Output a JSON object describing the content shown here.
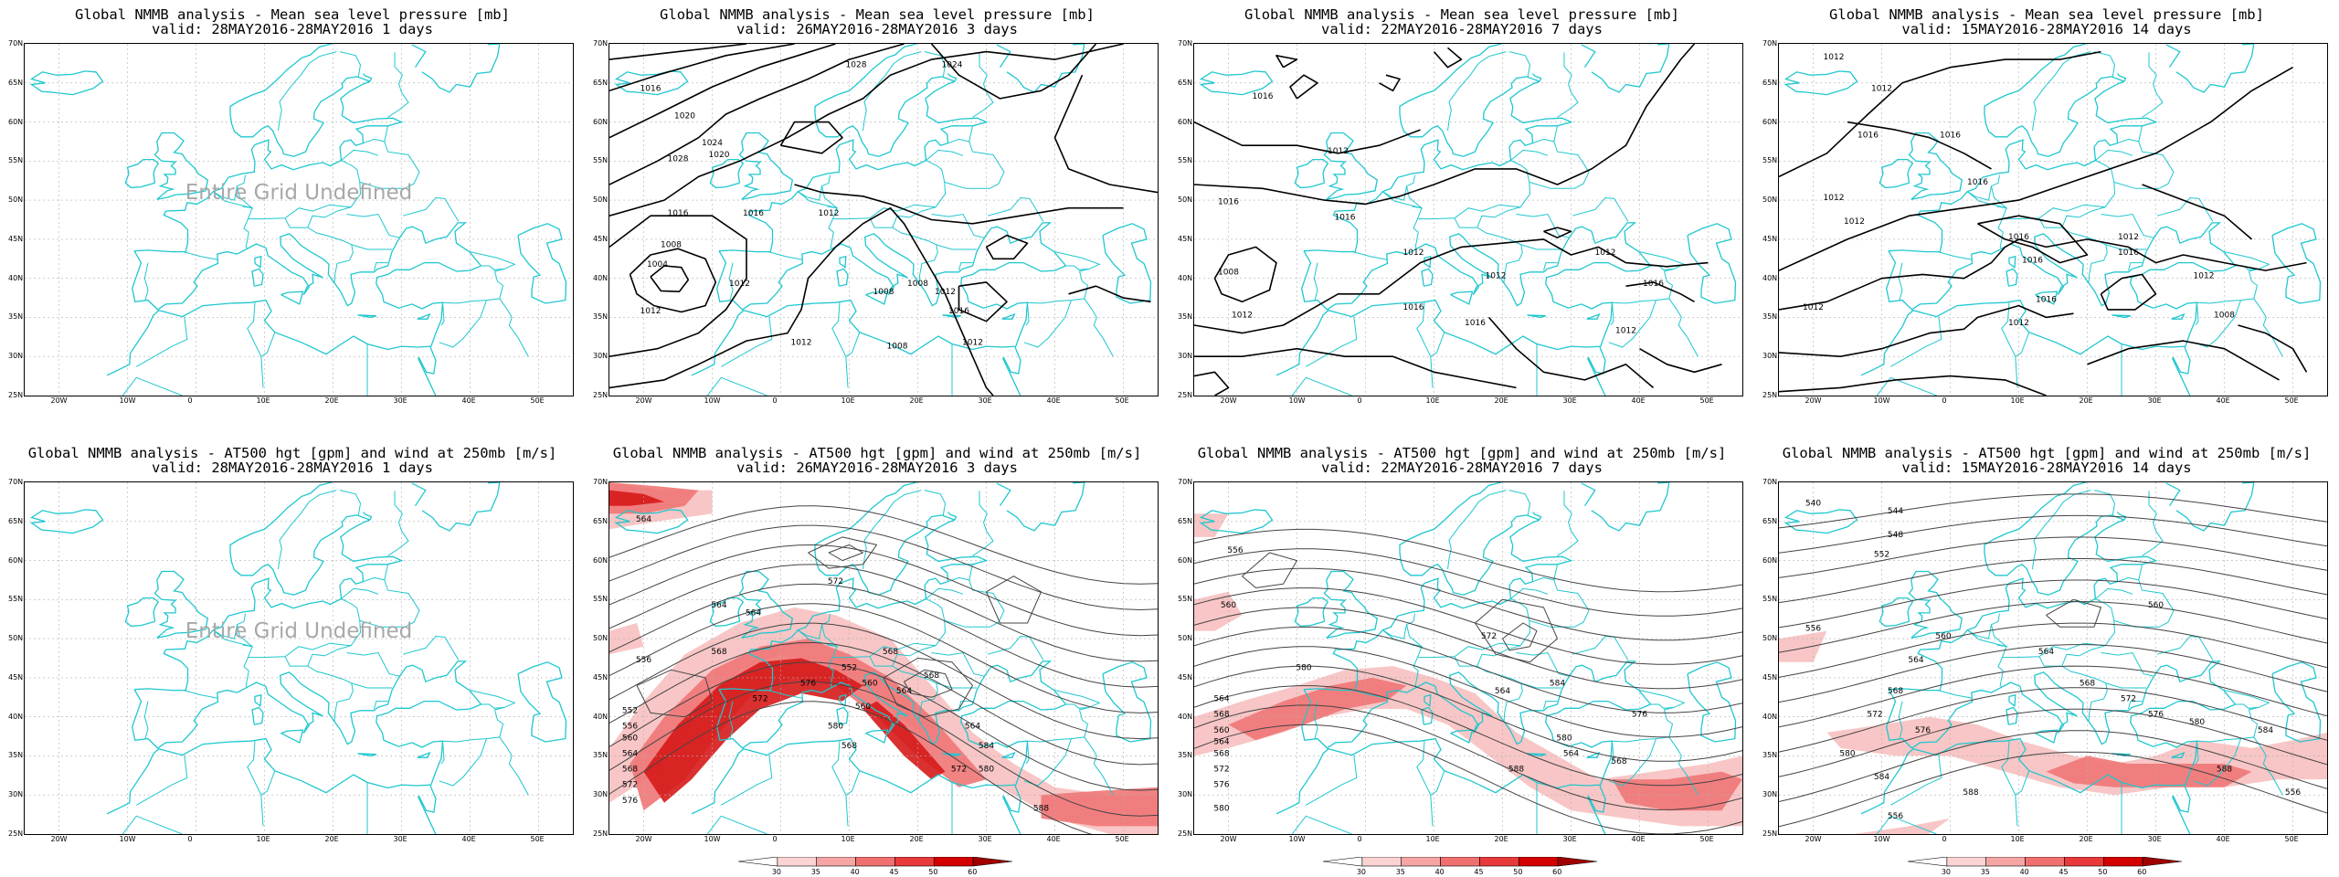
{
  "panels": [
    {
      "title": "Global NMMB analysis - Mean sea level pressure [mb]",
      "valid": "valid: 28MAY2016-28MAY2016  1 days",
      "kind": "mslp",
      "undefined": true,
      "message": "Entire Grid Undefined",
      "contour_labels": []
    },
    {
      "title": "Global NMMB analysis - Mean sea level pressure [mb]",
      "valid": "valid: 26MAY2016-28MAY2016  3 days",
      "kind": "mslp",
      "undefined": false,
      "contour_labels": [
        "1016",
        "1020",
        "1024",
        "1028",
        "1020",
        "1016",
        "1004",
        "1008",
        "1012",
        "1016",
        "1012",
        "1012",
        "1012",
        "1008",
        "1008",
        "1008",
        "1012",
        "1016",
        "1012",
        "1028",
        "1024"
      ]
    },
    {
      "title": "Global NMMB analysis - Mean sea level pressure [mb]",
      "valid": "valid: 22MAY2016-28MAY2016  7 days",
      "kind": "mslp",
      "undefined": false,
      "contour_labels": [
        "1016",
        "1016",
        "1012",
        "1008",
        "1012",
        "1016",
        "1012",
        "1016",
        "1012",
        "1012",
        "1016",
        "1016",
        "1012"
      ]
    },
    {
      "title": "Global NMMB analysis - Mean sea level pressure [mb]",
      "valid": "valid: 15MAY2016-28MAY2016  14 days",
      "kind": "mslp",
      "undefined": false,
      "contour_labels": [
        "1012",
        "1012",
        "1016",
        "1012",
        "1012",
        "1016",
        "1016",
        "1016",
        "1012",
        "1016",
        "1016",
        "1012",
        "1016",
        "1012",
        "1008",
        "1012"
      ]
    },
    {
      "title": "Global NMMB analysis - AT500 hgt [gpm] and wind at 250mb [m/s]",
      "valid": "valid: 28MAY2016-28MAY2016  1 days",
      "kind": "h500",
      "undefined": true,
      "message": "Entire Grid Undefined",
      "contour_labels": []
    },
    {
      "title": "Global NMMB analysis - AT500 hgt [gpm] and wind at 250mb [m/s]",
      "valid": "valid: 26MAY2016-28MAY2016  3 days",
      "kind": "h500",
      "undefined": false,
      "contour_labels": [
        "564",
        "564",
        "568",
        "556",
        "552",
        "556",
        "560",
        "564",
        "568",
        "572",
        "576",
        "564",
        "572",
        "568",
        "560",
        "552",
        "560",
        "564",
        "568",
        "572",
        "576",
        "580",
        "584",
        "580",
        "588",
        "564",
        "568",
        "572"
      ]
    },
    {
      "title": "Global NMMB analysis - AT500 hgt [gpm] and wind at 250mb [m/s]",
      "valid": "valid: 22MAY2016-28MAY2016  7 days",
      "kind": "h500",
      "undefined": false,
      "contour_labels": [
        "556",
        "560",
        "564",
        "568",
        "560",
        "564",
        "568",
        "572",
        "576",
        "580",
        "584",
        "580",
        "576",
        "572",
        "564",
        "588",
        "564",
        "568",
        "580"
      ]
    },
    {
      "title": "Global NMMB analysis - AT500 hgt [gpm] and wind at 250mb [m/s]",
      "valid": "valid: 15MAY2016-28MAY2016  14 days",
      "kind": "h500",
      "undefined": false,
      "contour_labels": [
        "540",
        "544",
        "548",
        "552",
        "556",
        "560",
        "564",
        "568",
        "572",
        "576",
        "580",
        "584",
        "588",
        "556",
        "560",
        "564",
        "568",
        "572",
        "576",
        "580",
        "584",
        "588",
        "556"
      ]
    }
  ],
  "lat_ticks": [
    "70N",
    "65N",
    "60N",
    "55N",
    "50N",
    "45N",
    "40N",
    "35N",
    "30N",
    "25N"
  ],
  "lon_ticks": [
    "20W",
    "10W",
    "0",
    "10E",
    "20E",
    "30E",
    "40E",
    "50E"
  ],
  "colorbar": {
    "labels": [
      "30",
      "35",
      "40",
      "45",
      "50",
      "60"
    ],
    "colors": [
      "#ffffff",
      "#fbd3d3",
      "#f6a5a5",
      "#f07070",
      "#e83a3a",
      "#d40000",
      "#a00000"
    ]
  },
  "colors": {
    "coast": "#1fc7cf",
    "contour": "#000000",
    "grid": "#b0b0b0",
    "jet_light": "#f7c0c0",
    "jet_mid": "#ef7575",
    "jet_dark": "#d61a1a"
  }
}
